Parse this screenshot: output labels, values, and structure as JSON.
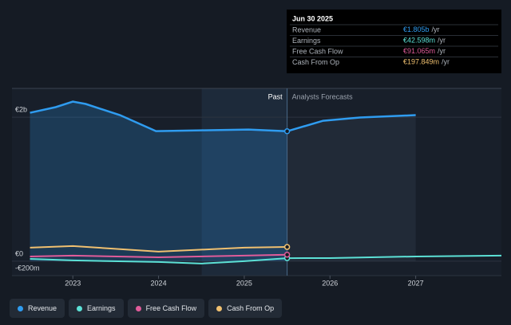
{
  "chart_data": {
    "type": "line",
    "xlim": [
      2022.29,
      2028
    ],
    "xticks": [
      2023,
      2024,
      2025,
      2026,
      2027
    ],
    "ylim": [
      -200,
      2400
    ],
    "yticks": [
      {
        "value": 2000,
        "label": "€2b"
      },
      {
        "value": 0,
        "label": "€0"
      },
      {
        "value": -200,
        "label": "-€200m"
      }
    ],
    "past_label": "Past",
    "forecast_label": "Analysts Forecasts",
    "series": [
      {
        "name": "Revenue",
        "color": "#2f9cf0",
        "x": [
          2022.5,
          2022.8,
          2023.0,
          2023.15,
          2023.55,
          2023.97,
          2024.5,
          2025.05,
          2025.5,
          2025.92,
          2026.35,
          2027.0
        ],
        "values": [
          2062,
          2140,
          2217,
          2184,
          2029,
          1807,
          1818,
          1829,
          1805,
          1951,
          1996,
          2029
        ]
      },
      {
        "name": "Earnings",
        "color": "#5ce1d6",
        "x": [
          2022.5,
          2023.0,
          2024.0,
          2024.5,
          2025.0,
          2025.5,
          2026.0,
          2027.0,
          2028.0
        ],
        "values": [
          33,
          11,
          -11,
          -33,
          0,
          42.598,
          44,
          66,
          78
        ]
      },
      {
        "name": "Free Cash Flow",
        "color": "#e05c9a",
        "x": [
          2022.5,
          2023.0,
          2024.0,
          2025.0,
          2025.5
        ],
        "values": [
          66,
          78,
          55,
          78,
          91.065
        ]
      },
      {
        "name": "Cash From Op",
        "color": "#f0c070",
        "x": [
          2022.5,
          2023.0,
          2024.0,
          2025.0,
          2025.5
        ],
        "values": [
          188,
          211,
          133,
          188,
          197.849
        ]
      }
    ],
    "tooltip": {
      "title": "Jun 30 2025",
      "suffix": "/yr",
      "value_labels": [
        "€1.805b",
        "€42.598m",
        "€91.065m",
        "€197.849m"
      ]
    }
  }
}
